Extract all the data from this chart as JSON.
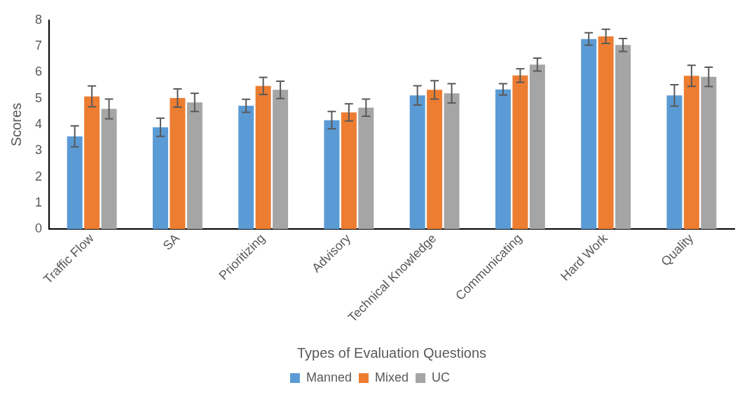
{
  "chart_data": {
    "type": "bar",
    "xlabel": "Types of Evaluation Questions",
    "ylabel": "Scores",
    "categories": [
      "Traffic Flow",
      "SA",
      "Prioritizing",
      "Advisory",
      "Technical Knowledge",
      "Communicating",
      "Hard Work",
      "Quality"
    ],
    "series": [
      {
        "name": "Manned",
        "color": "#5b9bd5",
        "values": [
          3.55,
          3.9,
          4.72,
          4.17,
          5.12,
          5.35,
          7.28,
          5.12
        ],
        "errors": [
          0.4,
          0.35,
          0.25,
          0.33,
          0.37,
          0.22,
          0.24,
          0.41
        ]
      },
      {
        "name": "Mixed",
        "color": "#ed7d31",
        "values": [
          5.08,
          5.02,
          5.48,
          4.47,
          5.33,
          5.88,
          7.38,
          5.87
        ],
        "errors": [
          0.4,
          0.35,
          0.33,
          0.33,
          0.35,
          0.26,
          0.27,
          0.4
        ]
      },
      {
        "name": "UC",
        "color": "#a5a5a5",
        "values": [
          4.6,
          4.85,
          5.33,
          4.65,
          5.2,
          6.3,
          7.05,
          5.83
        ],
        "errors": [
          0.38,
          0.35,
          0.33,
          0.33,
          0.37,
          0.25,
          0.25,
          0.37
        ]
      }
    ],
    "ylim": [
      0,
      8
    ],
    "yticks": [
      0,
      1,
      2,
      3,
      4,
      5,
      6,
      7,
      8
    ],
    "grid": false,
    "legend": "bottom"
  }
}
